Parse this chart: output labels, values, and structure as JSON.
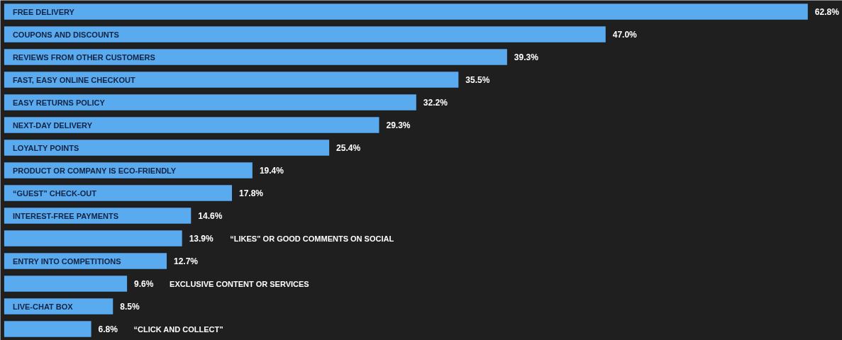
{
  "chart_data": {
    "type": "bar",
    "orientation": "horizontal",
    "categories": [
      "FREE DELIVERY",
      "COUPONS AND DISCOUNTS",
      "REVIEWS FROM OTHER CUSTOMERS",
      "FAST, EASY ONLINE CHECKOUT",
      "EASY RETURNS POLICY",
      "NEXT-DAY DELIVERY",
      "LOYALTY POINTS",
      "PRODUCT OR COMPANY IS ECO-FRIENDLY",
      "“GUEST” CHECK-OUT",
      "INTEREST-FREE PAYMENTS",
      "“LIKES” OR GOOD COMMENTS ON SOCIAL",
      "ENTRY INTO COMPETITIONS",
      "EXCLUSIVE CONTENT OR SERVICES",
      "LIVE-CHAT BOX",
      "“CLICK AND COLLECT”"
    ],
    "values": [
      62.8,
      47.0,
      39.3,
      35.5,
      32.2,
      29.3,
      25.4,
      19.4,
      17.8,
      14.6,
      13.9,
      12.7,
      9.6,
      8.5,
      6.8
    ],
    "value_labels": [
      "62.8%",
      "47.0%",
      "39.3%",
      "35.5%",
      "32.2%",
      "29.3%",
      "25.4%",
      "19.4%",
      "17.8%",
      "14.6%",
      "13.9%",
      "12.7%",
      "9.6%",
      "8.5%",
      "6.8%"
    ],
    "color": "#5aaaf0"
  }
}
